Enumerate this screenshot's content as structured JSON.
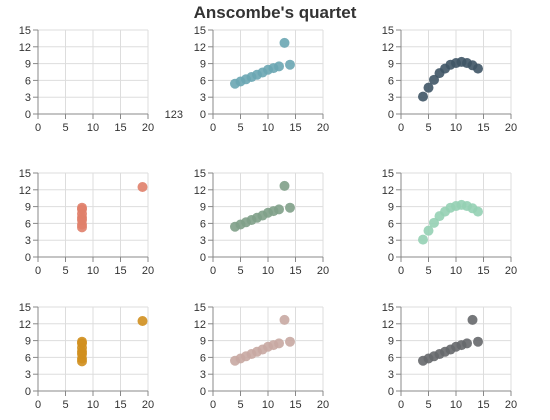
{
  "title": "Anscombe's quartet",
  "stray_text": "123",
  "chart_data": {
    "type": "scatter",
    "title": "Anscombe's quartet",
    "xlim": [
      0,
      20
    ],
    "ylim": [
      0,
      15
    ],
    "x_ticks": [
      0,
      5,
      10,
      15,
      20
    ],
    "y_ticks": [
      0,
      3,
      6,
      9,
      12,
      15
    ],
    "grid": true,
    "panels": [
      {
        "color": "#5b7a8c",
        "points": []
      },
      {
        "color": "#6aa6b3",
        "points": [
          [
            4,
            5.4
          ],
          [
            5,
            5.8
          ],
          [
            6,
            6.2
          ],
          [
            7,
            6.6
          ],
          [
            8,
            7.0
          ],
          [
            9,
            7.4
          ],
          [
            10,
            7.9
          ],
          [
            11,
            8.2
          ],
          [
            12,
            8.5
          ],
          [
            13,
            12.7
          ],
          [
            14,
            8.8
          ]
        ]
      },
      {
        "color": "#3f5566",
        "points": [
          [
            4,
            3.1
          ],
          [
            5,
            4.7
          ],
          [
            6,
            6.1
          ],
          [
            7,
            7.3
          ],
          [
            8,
            8.1
          ],
          [
            9,
            8.8
          ],
          [
            10,
            9.1
          ],
          [
            11,
            9.3
          ],
          [
            12,
            9.1
          ],
          [
            13,
            8.7
          ],
          [
            14,
            8.1
          ]
        ]
      },
      {
        "color": "#e07f6a",
        "points": [
          [
            8,
            5.3
          ],
          [
            8,
            5.8
          ],
          [
            8,
            6.6
          ],
          [
            8,
            7.0
          ],
          [
            8,
            7.7
          ],
          [
            8,
            8.5
          ],
          [
            8,
            8.8
          ],
          [
            19,
            12.5
          ]
        ]
      },
      {
        "color": "#7fa088",
        "points": [
          [
            4,
            5.4
          ],
          [
            5,
            5.8
          ],
          [
            6,
            6.2
          ],
          [
            7,
            6.6
          ],
          [
            8,
            7.0
          ],
          [
            9,
            7.4
          ],
          [
            10,
            7.9
          ],
          [
            11,
            8.2
          ],
          [
            12,
            8.5
          ],
          [
            13,
            12.7
          ],
          [
            14,
            8.8
          ]
        ]
      },
      {
        "color": "#95d0b4",
        "points": [
          [
            4,
            3.1
          ],
          [
            5,
            4.7
          ],
          [
            6,
            6.1
          ],
          [
            7,
            7.3
          ],
          [
            8,
            8.1
          ],
          [
            9,
            8.8
          ],
          [
            10,
            9.1
          ],
          [
            11,
            9.3
          ],
          [
            12,
            9.1
          ],
          [
            13,
            8.7
          ],
          [
            14,
            8.1
          ]
        ]
      },
      {
        "color": "#d08f1e",
        "points": [
          [
            8,
            5.3
          ],
          [
            8,
            5.8
          ],
          [
            8,
            6.6
          ],
          [
            8,
            7.0
          ],
          [
            8,
            7.7
          ],
          [
            8,
            8.5
          ],
          [
            8,
            8.8
          ],
          [
            19,
            12.5
          ]
        ]
      },
      {
        "color": "#c8a8a2",
        "points": [
          [
            4,
            5.4
          ],
          [
            5,
            5.8
          ],
          [
            6,
            6.2
          ],
          [
            7,
            6.6
          ],
          [
            8,
            7.0
          ],
          [
            9,
            7.4
          ],
          [
            10,
            7.9
          ],
          [
            11,
            8.2
          ],
          [
            12,
            8.5
          ],
          [
            13,
            12.7
          ],
          [
            14,
            8.8
          ]
        ]
      },
      {
        "color": "#66686b",
        "points": [
          [
            4,
            5.4
          ],
          [
            5,
            5.8
          ],
          [
            6,
            6.2
          ],
          [
            7,
            6.6
          ],
          [
            8,
            7.0
          ],
          [
            9,
            7.4
          ],
          [
            10,
            7.9
          ],
          [
            11,
            8.2
          ],
          [
            12,
            8.5
          ],
          [
            13,
            12.7
          ],
          [
            14,
            8.8
          ]
        ]
      }
    ]
  }
}
